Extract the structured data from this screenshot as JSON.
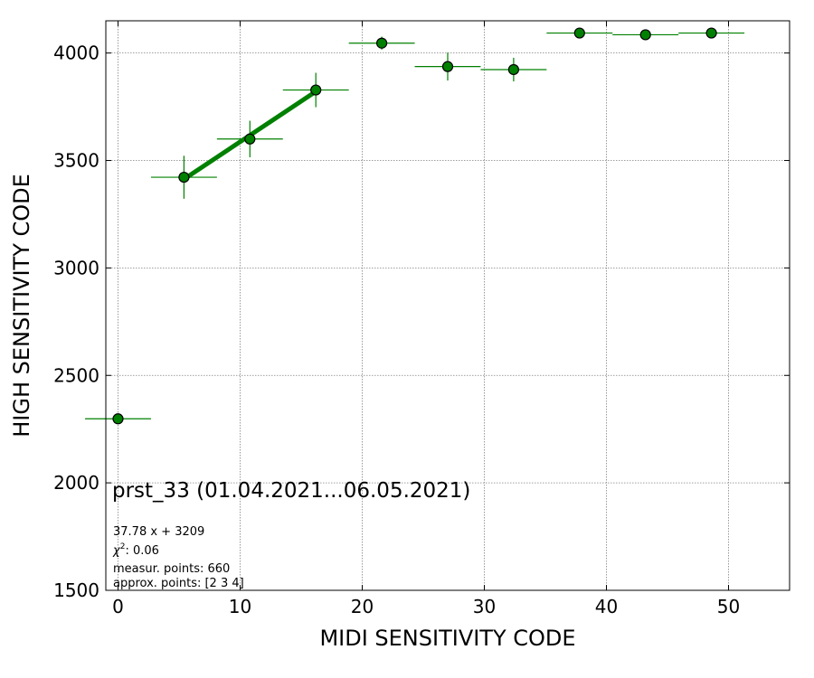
{
  "chart_data": {
    "type": "scatter",
    "xlabel": "MIDI SENSITIVITY CODE",
    "ylabel": "HIGH SENSITIVITY CODE",
    "xlim": [
      -1,
      55
    ],
    "ylim": [
      1500,
      4150
    ],
    "xticks": [
      0,
      10,
      20,
      30,
      40,
      50
    ],
    "yticks": [
      1500,
      2000,
      2500,
      3000,
      3500,
      4000
    ],
    "grid": true,
    "marker_color": "#008000",
    "marker_edge_color": "#000000",
    "fit_line_color": "#008000",
    "points": [
      {
        "x": 0.0,
        "y": 2298,
        "xerr": 2.7,
        "yerr": 0
      },
      {
        "x": 5.4,
        "y": 3422,
        "xerr": 2.7,
        "yerr": 100
      },
      {
        "x": 10.8,
        "y": 3600,
        "xerr": 2.7,
        "yerr": 85
      },
      {
        "x": 16.2,
        "y": 3828,
        "xerr": 2.7,
        "yerr": 80
      },
      {
        "x": 21.6,
        "y": 4046,
        "xerr": 2.7,
        "yerr": 30
      },
      {
        "x": 27.0,
        "y": 3937,
        "xerr": 2.7,
        "yerr": 65
      },
      {
        "x": 32.4,
        "y": 3923,
        "xerr": 2.7,
        "yerr": 55
      },
      {
        "x": 37.8,
        "y": 4093,
        "xerr": 2.7,
        "yerr": 0
      },
      {
        "x": 43.2,
        "y": 4085,
        "xerr": 2.7,
        "yerr": 0
      },
      {
        "x": 48.6,
        "y": 4093,
        "xerr": 2.7,
        "yerr": 0
      }
    ],
    "fit": {
      "slope": 37.78,
      "intercept": 3209,
      "x_from": 5.4,
      "x_to": 16.2
    },
    "annotations": {
      "title": "prst_33 (01.04.2021...06.05.2021)",
      "fit_text": "37.78 x + 3209",
      "chi_label": "χ",
      "chi_sup": "2",
      "chi_value": ": 0.06",
      "measur": "measur. points: 660",
      "approx": "approx. points: [2 3 4]"
    }
  }
}
